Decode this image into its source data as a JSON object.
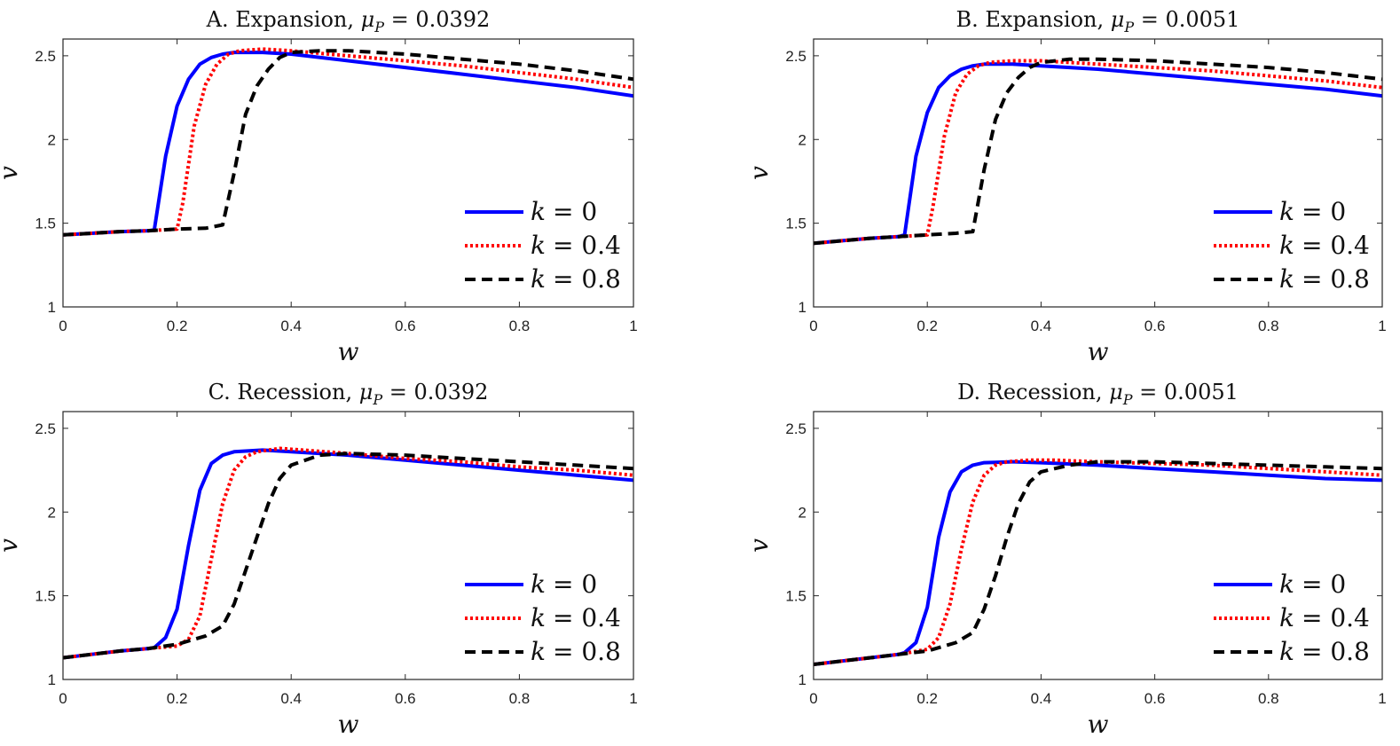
{
  "chart_data": [
    {
      "type": "line",
      "title": "A. Expansion, μ_P = 0.0392",
      "title_parts": {
        "prefix": "A. Expansion, ",
        "symbol": "μ",
        "subscript": "P",
        "suffix": " = 0.0392"
      },
      "xlabel": "w",
      "ylabel": "v",
      "xlim": [
        0,
        1
      ],
      "ylim": [
        1,
        2.6
      ],
      "xticks": [
        0,
        0.2,
        0.4,
        0.6,
        0.8,
        1
      ],
      "xtick_labels": [
        "0",
        "0.2",
        "0.4",
        "0.6",
        "0.8",
        "1"
      ],
      "yticks": [
        1,
        1.5,
        2,
        2.5
      ],
      "ytick_labels": [
        "1",
        "1.5",
        "2",
        "2.5"
      ],
      "legend_position": "bottom-right",
      "series": [
        {
          "name": "k = 0",
          "label_var": "k",
          "label_val": "= 0",
          "color": "#0000ff",
          "dash": "solid",
          "x": [
            0,
            0.05,
            0.1,
            0.15,
            0.16,
            0.18,
            0.2,
            0.22,
            0.24,
            0.26,
            0.28,
            0.3,
            0.35,
            0.4,
            0.5,
            0.6,
            0.7,
            0.8,
            0.9,
            1.0
          ],
          "y": [
            1.43,
            1.44,
            1.45,
            1.455,
            1.46,
            1.9,
            2.2,
            2.36,
            2.45,
            2.49,
            2.51,
            2.52,
            2.52,
            2.51,
            2.47,
            2.43,
            2.39,
            2.35,
            2.31,
            2.26
          ]
        },
        {
          "name": "k = 0.4",
          "label_var": "k",
          "label_val": "= 0.4",
          "color": "#ff0000",
          "dash": "dotted",
          "x": [
            0,
            0.05,
            0.1,
            0.15,
            0.2,
            0.21,
            0.23,
            0.25,
            0.27,
            0.29,
            0.31,
            0.35,
            0.4,
            0.5,
            0.6,
            0.7,
            0.8,
            0.9,
            1.0
          ],
          "y": [
            1.43,
            1.44,
            1.45,
            1.455,
            1.465,
            1.62,
            2.08,
            2.33,
            2.45,
            2.51,
            2.53,
            2.54,
            2.53,
            2.5,
            2.47,
            2.44,
            2.4,
            2.36,
            2.31
          ]
        },
        {
          "name": "k = 0.8",
          "label_var": "k",
          "label_val": "= 0.8",
          "color": "#000000",
          "dash": "dashed",
          "x": [
            0,
            0.05,
            0.1,
            0.15,
            0.2,
            0.25,
            0.28,
            0.3,
            0.32,
            0.34,
            0.36,
            0.38,
            0.4,
            0.45,
            0.5,
            0.6,
            0.7,
            0.8,
            0.9,
            1.0
          ],
          "y": [
            1.43,
            1.44,
            1.45,
            1.455,
            1.465,
            1.47,
            1.49,
            1.8,
            2.15,
            2.32,
            2.42,
            2.49,
            2.52,
            2.53,
            2.53,
            2.51,
            2.48,
            2.45,
            2.41,
            2.36
          ]
        }
      ]
    },
    {
      "type": "line",
      "title": "B. Expansion, μ_P = 0.0051",
      "title_parts": {
        "prefix": "B. Expansion, ",
        "symbol": "μ",
        "subscript": "P",
        "suffix": " = 0.0051"
      },
      "xlabel": "w",
      "ylabel": "v",
      "xlim": [
        0,
        1
      ],
      "ylim": [
        1,
        2.6
      ],
      "xticks": [
        0,
        0.2,
        0.4,
        0.6,
        0.8,
        1
      ],
      "xtick_labels": [
        "0",
        "0.2",
        "0.4",
        "0.6",
        "0.8",
        "1"
      ],
      "yticks": [
        1,
        1.5,
        2,
        2.5
      ],
      "ytick_labels": [
        "1",
        "1.5",
        "2",
        "2.5"
      ],
      "legend_position": "bottom-right",
      "series": [
        {
          "name": "k = 0",
          "label_var": "k",
          "label_val": "= 0",
          "color": "#0000ff",
          "dash": "solid",
          "x": [
            0,
            0.05,
            0.1,
            0.15,
            0.16,
            0.18,
            0.2,
            0.22,
            0.24,
            0.26,
            0.28,
            0.3,
            0.35,
            0.4,
            0.5,
            0.6,
            0.7,
            0.8,
            0.9,
            1.0
          ],
          "y": [
            1.38,
            1.395,
            1.41,
            1.42,
            1.43,
            1.9,
            2.16,
            2.31,
            2.38,
            2.42,
            2.44,
            2.45,
            2.45,
            2.44,
            2.42,
            2.39,
            2.36,
            2.33,
            2.3,
            2.26
          ]
        },
        {
          "name": "k = 0.4",
          "label_var": "k",
          "label_val": "= 0.4",
          "color": "#ff0000",
          "dash": "dotted",
          "x": [
            0,
            0.05,
            0.1,
            0.15,
            0.2,
            0.21,
            0.23,
            0.25,
            0.27,
            0.29,
            0.31,
            0.35,
            0.4,
            0.5,
            0.6,
            0.7,
            0.8,
            0.9,
            1.0
          ],
          "y": [
            1.38,
            1.395,
            1.41,
            1.42,
            1.43,
            1.6,
            2.02,
            2.28,
            2.39,
            2.44,
            2.46,
            2.47,
            2.47,
            2.45,
            2.43,
            2.41,
            2.38,
            2.35,
            2.31
          ]
        },
        {
          "name": "k = 0.8",
          "label_var": "k",
          "label_val": "= 0.8",
          "color": "#000000",
          "dash": "dashed",
          "x": [
            0,
            0.05,
            0.1,
            0.15,
            0.2,
            0.25,
            0.28,
            0.3,
            0.32,
            0.34,
            0.36,
            0.38,
            0.4,
            0.45,
            0.5,
            0.6,
            0.7,
            0.8,
            0.9,
            1.0
          ],
          "y": [
            1.38,
            1.395,
            1.41,
            1.42,
            1.43,
            1.44,
            1.45,
            1.82,
            2.12,
            2.28,
            2.37,
            2.43,
            2.46,
            2.48,
            2.48,
            2.47,
            2.45,
            2.43,
            2.4,
            2.36
          ]
        }
      ]
    },
    {
      "type": "line",
      "title": "C. Recession, μ_P = 0.0392",
      "title_parts": {
        "prefix": "C. Recession, ",
        "symbol": "μ",
        "subscript": "P",
        "suffix": " = 0.0392"
      },
      "xlabel": "w",
      "ylabel": "v",
      "xlim": [
        0,
        1
      ],
      "ylim": [
        1,
        2.6
      ],
      "xticks": [
        0,
        0.2,
        0.4,
        0.6,
        0.8,
        1
      ],
      "xtick_labels": [
        "0",
        "0.2",
        "0.4",
        "0.6",
        "0.8",
        "1"
      ],
      "yticks": [
        1,
        1.5,
        2,
        2.5
      ],
      "ytick_labels": [
        "1",
        "1.5",
        "2",
        "2.5"
      ],
      "legend_position": "bottom-right",
      "series": [
        {
          "name": "k = 0",
          "label_var": "k",
          "label_val": "= 0",
          "color": "#0000ff",
          "dash": "solid",
          "x": [
            0,
            0.05,
            0.1,
            0.15,
            0.16,
            0.18,
            0.2,
            0.22,
            0.24,
            0.26,
            0.28,
            0.3,
            0.35,
            0.4,
            0.5,
            0.6,
            0.7,
            0.8,
            0.9,
            1.0
          ],
          "y": [
            1.13,
            1.15,
            1.17,
            1.185,
            1.19,
            1.25,
            1.42,
            1.8,
            2.13,
            2.29,
            2.34,
            2.36,
            2.37,
            2.36,
            2.34,
            2.31,
            2.28,
            2.25,
            2.22,
            2.19
          ]
        },
        {
          "name": "k = 0.4",
          "label_var": "k",
          "label_val": "= 0.4",
          "color": "#ff0000",
          "dash": "dotted",
          "x": [
            0,
            0.05,
            0.1,
            0.15,
            0.2,
            0.22,
            0.24,
            0.26,
            0.28,
            0.3,
            0.32,
            0.34,
            0.38,
            0.42,
            0.5,
            0.6,
            0.7,
            0.8,
            0.9,
            1.0
          ],
          "y": [
            1.13,
            1.15,
            1.17,
            1.185,
            1.2,
            1.24,
            1.38,
            1.72,
            2.05,
            2.25,
            2.33,
            2.36,
            2.38,
            2.37,
            2.35,
            2.32,
            2.3,
            2.27,
            2.25,
            2.22
          ]
        },
        {
          "name": "k = 0.8",
          "label_var": "k",
          "label_val": "= 0.8",
          "color": "#000000",
          "dash": "dashed",
          "x": [
            0,
            0.05,
            0.1,
            0.15,
            0.2,
            0.25,
            0.28,
            0.3,
            0.32,
            0.34,
            0.36,
            0.38,
            0.4,
            0.45,
            0.5,
            0.6,
            0.7,
            0.8,
            0.9,
            1.0
          ],
          "y": [
            1.13,
            1.15,
            1.17,
            1.185,
            1.21,
            1.26,
            1.32,
            1.45,
            1.65,
            1.85,
            2.05,
            2.2,
            2.28,
            2.34,
            2.35,
            2.34,
            2.32,
            2.3,
            2.28,
            2.26
          ]
        }
      ]
    },
    {
      "type": "line",
      "title": "D. Recession, μ_P = 0.0051",
      "title_parts": {
        "prefix": "D. Recession, ",
        "symbol": "μ",
        "subscript": "P",
        "suffix": " = 0.0051"
      },
      "xlabel": "w",
      "ylabel": "v",
      "xlim": [
        0,
        1
      ],
      "ylim": [
        1,
        2.6
      ],
      "xticks": [
        0,
        0.2,
        0.4,
        0.6,
        0.8,
        1
      ],
      "xtick_labels": [
        "0",
        "0.2",
        "0.4",
        "0.6",
        "0.8",
        "1"
      ],
      "yticks": [
        1,
        1.5,
        2,
        2.5
      ],
      "ytick_labels": [
        "1",
        "1.5",
        "2",
        "2.5"
      ],
      "legend_position": "bottom-right",
      "series": [
        {
          "name": "k = 0",
          "label_var": "k",
          "label_val": "= 0",
          "color": "#0000ff",
          "dash": "solid",
          "x": [
            0,
            0.05,
            0.1,
            0.15,
            0.16,
            0.18,
            0.2,
            0.22,
            0.24,
            0.26,
            0.28,
            0.3,
            0.35,
            0.4,
            0.5,
            0.6,
            0.7,
            0.8,
            0.9,
            1.0
          ],
          "y": [
            1.09,
            1.11,
            1.13,
            1.15,
            1.16,
            1.22,
            1.43,
            1.85,
            2.12,
            2.24,
            2.28,
            2.295,
            2.3,
            2.295,
            2.28,
            2.26,
            2.24,
            2.22,
            2.2,
            2.19
          ]
        },
        {
          "name": "k = 0.4",
          "label_var": "k",
          "label_val": "= 0.4",
          "color": "#ff0000",
          "dash": "dotted",
          "x": [
            0,
            0.05,
            0.1,
            0.15,
            0.2,
            0.22,
            0.24,
            0.26,
            0.28,
            0.3,
            0.32,
            0.34,
            0.38,
            0.42,
            0.5,
            0.6,
            0.7,
            0.8,
            0.9,
            1.0
          ],
          "y": [
            1.09,
            1.11,
            1.13,
            1.15,
            1.18,
            1.25,
            1.45,
            1.78,
            2.06,
            2.22,
            2.28,
            2.3,
            2.31,
            2.31,
            2.3,
            2.29,
            2.28,
            2.26,
            2.24,
            2.22
          ]
        },
        {
          "name": "k = 0.8",
          "label_var": "k",
          "label_val": "= 0.8",
          "color": "#000000",
          "dash": "dashed",
          "x": [
            0,
            0.05,
            0.1,
            0.15,
            0.2,
            0.25,
            0.28,
            0.3,
            0.32,
            0.34,
            0.36,
            0.38,
            0.4,
            0.45,
            0.5,
            0.6,
            0.7,
            0.8,
            0.9,
            1.0
          ],
          "y": [
            1.09,
            1.11,
            1.13,
            1.15,
            1.17,
            1.22,
            1.28,
            1.42,
            1.62,
            1.85,
            2.05,
            2.18,
            2.24,
            2.28,
            2.3,
            2.3,
            2.29,
            2.28,
            2.27,
            2.26
          ]
        }
      ]
    }
  ]
}
